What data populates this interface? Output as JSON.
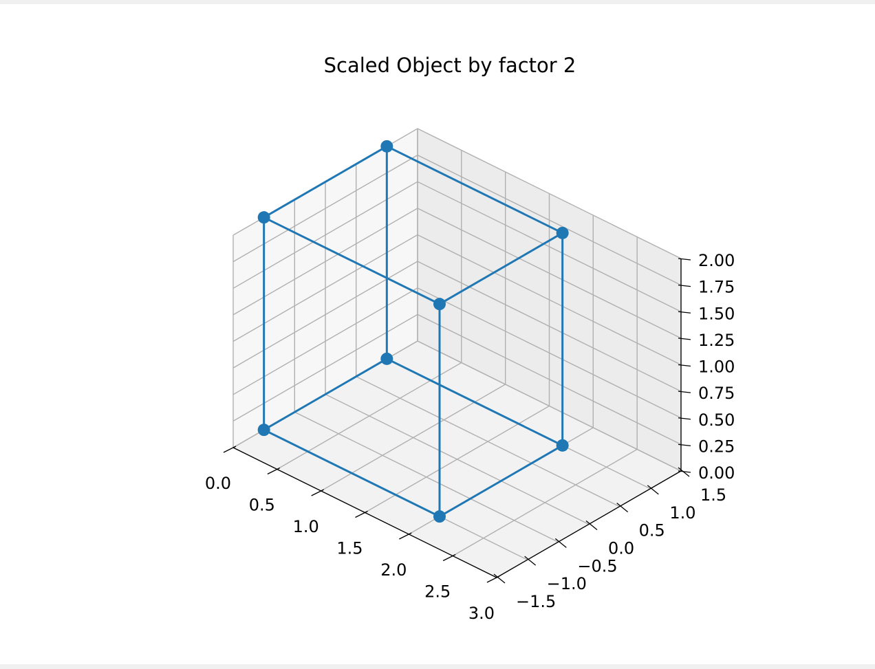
{
  "chart_data": {
    "type": "scatter",
    "title": "Scaled Object by factor 2",
    "projection": "3d-wireframe",
    "xlim": [
      0,
      3
    ],
    "ylim": [
      -1.5,
      1.5
    ],
    "zlim": [
      0,
      2
    ],
    "grid": true,
    "x_ticks": [
      "0.0",
      "0.5",
      "1.0",
      "1.5",
      "2.0",
      "2.5",
      "3.0"
    ],
    "y_ticks": [
      "−1.5",
      "−1.0",
      "−0.5",
      "0.0",
      "0.5",
      "1.0",
      "1.5"
    ],
    "z_ticks": [
      "0.00",
      "0.25",
      "0.50",
      "0.75",
      "1.00",
      "1.25",
      "1.50",
      "1.75",
      "2.00"
    ],
    "series": [
      {
        "color": "#1f77b4",
        "vertices": [
          {
            "x": 0.0,
            "y": -1.0,
            "z": 0
          },
          {
            "x": 2.0,
            "y": -1.0,
            "z": 0
          },
          {
            "x": 2.0,
            "y": 1.0,
            "z": 0
          },
          {
            "x": 0.0,
            "y": 1.0,
            "z": 0
          },
          {
            "x": 0.0,
            "y": -1.0,
            "z": 2
          },
          {
            "x": 2.0,
            "y": -1.0,
            "z": 2
          },
          {
            "x": 2.0,
            "y": 1.0,
            "z": 2
          },
          {
            "x": 0.0,
            "y": 1.0,
            "z": 2
          }
        ],
        "edges": [
          [
            0,
            1
          ],
          [
            1,
            2
          ],
          [
            2,
            3
          ],
          [
            3,
            0
          ],
          [
            4,
            5
          ],
          [
            5,
            6
          ],
          [
            6,
            7
          ],
          [
            7,
            4
          ],
          [
            0,
            4
          ],
          [
            1,
            5
          ],
          [
            2,
            6
          ],
          [
            3,
            7
          ]
        ]
      }
    ]
  }
}
